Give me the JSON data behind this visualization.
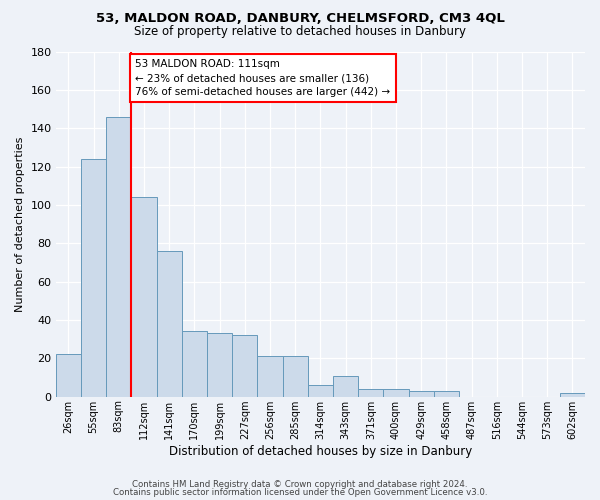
{
  "title1": "53, MALDON ROAD, DANBURY, CHELMSFORD, CM3 4QL",
  "title2": "Size of property relative to detached houses in Danbury",
  "xlabel": "Distribution of detached houses by size in Danbury",
  "ylabel": "Number of detached properties",
  "bar_labels": [
    "26sqm",
    "55sqm",
    "83sqm",
    "112sqm",
    "141sqm",
    "170sqm",
    "199sqm",
    "227sqm",
    "256sqm",
    "285sqm",
    "314sqm",
    "343sqm",
    "371sqm",
    "400sqm",
    "429sqm",
    "458sqm",
    "487sqm",
    "516sqm",
    "544sqm",
    "573sqm",
    "602sqm"
  ],
  "bar_values": [
    22,
    124,
    146,
    104,
    76,
    34,
    33,
    32,
    21,
    21,
    6,
    11,
    4,
    4,
    3,
    3,
    0,
    0,
    0,
    0,
    2
  ],
  "bar_color": "#ccdaea",
  "bar_edge_color": "#6699bb",
  "annotation_text": "53 MALDON ROAD: 111sqm\n← 23% of detached houses are smaller (136)\n76% of semi-detached houses are larger (442) →",
  "annotation_box_color": "white",
  "annotation_box_edge_color": "red",
  "vline_index": 2.5,
  "vline_color": "red",
  "ylim": [
    0,
    180
  ],
  "yticks": [
    0,
    20,
    40,
    60,
    80,
    100,
    120,
    140,
    160,
    180
  ],
  "footer1": "Contains HM Land Registry data © Crown copyright and database right 2024.",
  "footer2": "Contains public sector information licensed under the Open Government Licence v3.0.",
  "bg_color": "#eef2f8"
}
